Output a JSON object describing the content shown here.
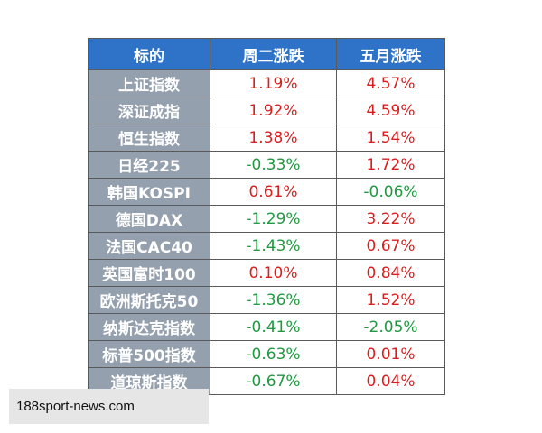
{
  "table": {
    "headers": [
      "标的",
      "周二涨跌",
      "五月涨跌"
    ],
    "rows": [
      {
        "name": "上证指数",
        "tue": "1.19%",
        "may": "4.57%",
        "tue_dir": "pos",
        "may_dir": "pos"
      },
      {
        "name": "深证成指",
        "tue": "1.92%",
        "may": "4.59%",
        "tue_dir": "pos",
        "may_dir": "pos"
      },
      {
        "name": "恒生指数",
        "tue": "1.38%",
        "may": "1.54%",
        "tue_dir": "pos",
        "may_dir": "pos"
      },
      {
        "name": "日经225",
        "tue": "-0.33%",
        "may": "1.72%",
        "tue_dir": "neg",
        "may_dir": "pos"
      },
      {
        "name": "韩国KOSPI",
        "tue": "0.61%",
        "may": "-0.06%",
        "tue_dir": "pos",
        "may_dir": "neg"
      },
      {
        "name": "德国DAX",
        "tue": "-1.29%",
        "may": "3.22%",
        "tue_dir": "neg",
        "may_dir": "pos"
      },
      {
        "name": "法国CAC40",
        "tue": "-1.43%",
        "may": "0.67%",
        "tue_dir": "neg",
        "may_dir": "pos"
      },
      {
        "name": "英国富时100",
        "tue": "0.10%",
        "may": "0.84%",
        "tue_dir": "pos",
        "may_dir": "pos"
      },
      {
        "name": "欧洲斯托克50",
        "tue": "-1.36%",
        "may": "1.52%",
        "tue_dir": "neg",
        "may_dir": "pos"
      },
      {
        "name": "纳斯达克指数",
        "tue": "-0.41%",
        "may": "-2.05%",
        "tue_dir": "neg",
        "may_dir": "neg"
      },
      {
        "name": "标普500指数",
        "tue": "-0.63%",
        "may": "0.01%",
        "tue_dir": "neg",
        "may_dir": "pos"
      },
      {
        "name": "道琼斯指数",
        "tue": "-0.67%",
        "may": "0.04%",
        "tue_dir": "neg",
        "may_dir": "pos"
      }
    ]
  },
  "colors": {
    "header_bg": "#2e73c8",
    "name_bg": "#95a0ae",
    "positive": "#d81e1e",
    "negative": "#1f9a40"
  },
  "watermark": {
    "icon": "seal-icon"
  },
  "footer": {
    "text": "188sport-news.com"
  }
}
